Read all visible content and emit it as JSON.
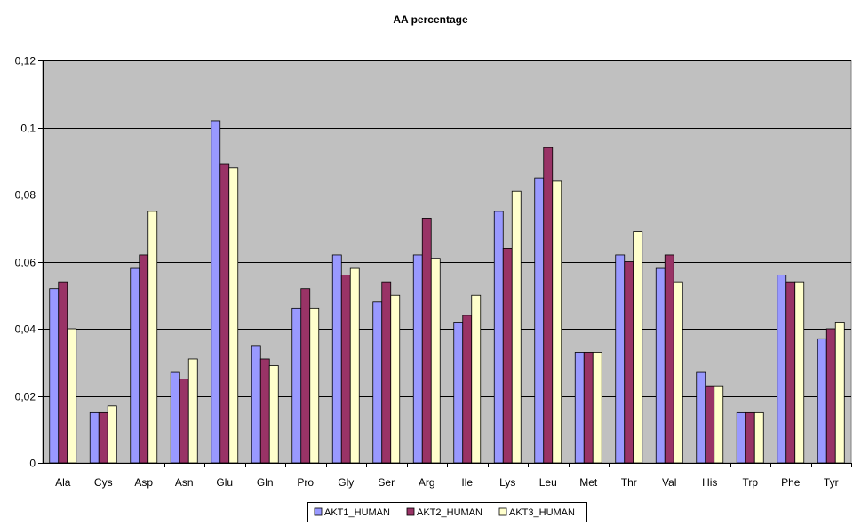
{
  "chart_data": {
    "type": "bar",
    "title": "AA percentage",
    "xlabel": "",
    "ylabel": "",
    "categories": [
      "Ala",
      "Cys",
      "Asp",
      "Asn",
      "Glu",
      "Gln",
      "Pro",
      "Gly",
      "Ser",
      "Arg",
      "Ile",
      "Lys",
      "Leu",
      "Met",
      "Thr",
      "Val",
      "His",
      "Trp",
      "Phe",
      "Tyr"
    ],
    "series": [
      {
        "name": "AKT1_HUMAN",
        "color": "#9999ff",
        "values": [
          0.052,
          0.015,
          0.058,
          0.027,
          0.102,
          0.035,
          0.046,
          0.062,
          0.048,
          0.062,
          0.042,
          0.075,
          0.085,
          0.033,
          0.062,
          0.058,
          0.027,
          0.015,
          0.056,
          0.037
        ]
      },
      {
        "name": "AKT2_HUMAN",
        "color": "#993366",
        "values": [
          0.054,
          0.015,
          0.062,
          0.025,
          0.089,
          0.031,
          0.052,
          0.056,
          0.054,
          0.073,
          0.044,
          0.064,
          0.094,
          0.033,
          0.06,
          0.062,
          0.023,
          0.015,
          0.054,
          0.04
        ]
      },
      {
        "name": "AKT3_HUMAN",
        "color": "#ffffcc",
        "values": [
          0.04,
          0.017,
          0.075,
          0.031,
          0.088,
          0.029,
          0.046,
          0.058,
          0.05,
          0.061,
          0.05,
          0.081,
          0.084,
          0.033,
          0.069,
          0.054,
          0.023,
          0.015,
          0.054,
          0.042
        ]
      }
    ],
    "ylim": [
      0,
      0.12
    ],
    "yticks": [
      "0",
      "0,02",
      "0,04",
      "0,06",
      "0,08",
      "0,1",
      "0,12"
    ],
    "grid": true,
    "plot_background": "#c0c0c0",
    "legend": "bottom"
  }
}
